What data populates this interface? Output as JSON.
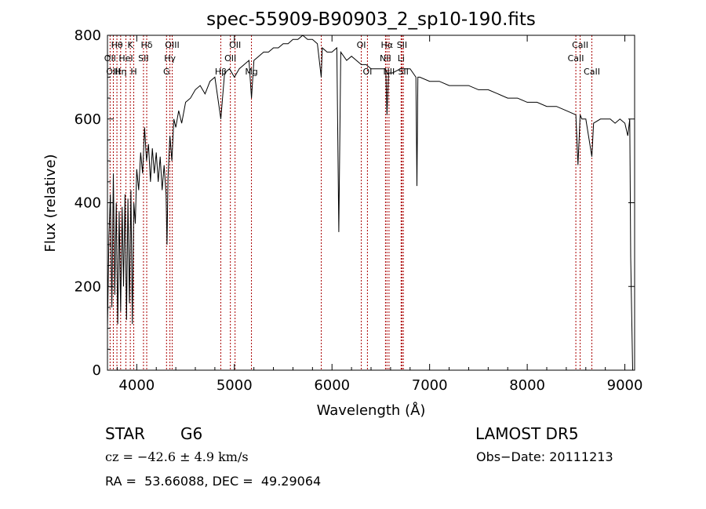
{
  "colors": {
    "spectrum": "#000000",
    "line_marker": "#aa0000",
    "axes": "#000000"
  },
  "chart_data": {
    "type": "line",
    "title": "spec-55909-B90903_2_sp10-190.fits",
    "xlabel": "Wavelength (Å)",
    "ylabel": "Flux (relative)",
    "xlim": [
      3700,
      9100
    ],
    "ylim": [
      0,
      800
    ],
    "x_ticks": [
      4000,
      5000,
      6000,
      7000,
      8000,
      9000
    ],
    "y_ticks": [
      0,
      200,
      400,
      600,
      800
    ],
    "series": [
      {
        "x": [
          3700,
          3715,
          3730,
          3745,
          3760,
          3775,
          3790,
          3805,
          3820,
          3835,
          3850,
          3865,
          3880,
          3895,
          3910,
          3925,
          3940,
          3955,
          3970,
          3985,
          4000,
          4020,
          4040,
          4060,
          4080,
          4100,
          4120,
          4140,
          4160,
          4180,
          4200,
          4220,
          4240,
          4260,
          4280,
          4300,
          4310,
          4320,
          4340,
          4360,
          4380,
          4400,
          4430,
          4460,
          4500,
          4550,
          4600,
          4650,
          4700,
          4750,
          4800,
          4861,
          4900,
          4950,
          5000,
          5050,
          5100,
          5150,
          5175,
          5200,
          5250,
          5300,
          5350,
          5400,
          5450,
          5500,
          5550,
          5600,
          5650,
          5700,
          5750,
          5800,
          5850,
          5890,
          5900,
          5950,
          6000,
          6050,
          6070,
          6090,
          6150,
          6200,
          6250,
          6300,
          6350,
          6400,
          6450,
          6500,
          6550,
          6563,
          6580,
          6620,
          6700,
          6800,
          6860,
          6870,
          6880,
          6900,
          7000,
          7100,
          7200,
          7300,
          7400,
          7500,
          7600,
          7700,
          7800,
          7900,
          8000,
          8100,
          8200,
          8300,
          8400,
          8498,
          8520,
          8542,
          8560,
          8600,
          8662,
          8680,
          8750,
          8800,
          8850,
          8900,
          8950,
          9000,
          9030,
          9050,
          9060,
          9080
        ],
        "y": [
          100,
          320,
          420,
          150,
          470,
          180,
          400,
          110,
          380,
          140,
          390,
          200,
          420,
          120,
          410,
          160,
          430,
          110,
          400,
          350,
          480,
          430,
          520,
          470,
          580,
          500,
          540,
          450,
          530,
          470,
          520,
          450,
          510,
          430,
          490,
          420,
          300,
          460,
          560,
          500,
          600,
          580,
          620,
          590,
          640,
          650,
          670,
          680,
          660,
          690,
          700,
          600,
          710,
          720,
          700,
          720,
          730,
          740,
          650,
          740,
          750,
          760,
          760,
          770,
          770,
          780,
          780,
          790,
          790,
          800,
          790,
          790,
          780,
          700,
          770,
          760,
          760,
          770,
          330,
          760,
          740,
          750,
          740,
          730,
          730,
          720,
          720,
          720,
          720,
          610,
          710,
          710,
          720,
          720,
          700,
          440,
          700,
          700,
          690,
          690,
          680,
          680,
          680,
          670,
          670,
          660,
          650,
          650,
          640,
          640,
          630,
          630,
          620,
          610,
          490,
          610,
          600,
          600,
          510,
          590,
          600,
          600,
          600,
          590,
          600,
          590,
          560,
          600,
          270,
          0
        ]
      }
    ],
    "line_labels": [
      {
        "text": "Hθ",
        "wl": 3797,
        "row": 1
      },
      {
        "text": "K",
        "wl": 3934,
        "row": 1
      },
      {
        "text": "Hδ",
        "wl": 4102,
        "row": 1
      },
      {
        "text": "OIII",
        "wl": 4363,
        "row": 1
      },
      {
        "text": "OII",
        "wl": 3727,
        "row": 2
      },
      {
        "text": "HeI",
        "wl": 3889,
        "row": 2
      },
      {
        "text": "SII",
        "wl": 4069,
        "row": 2
      },
      {
        "text": "Hγ",
        "wl": 4340,
        "row": 2
      },
      {
        "text": "OIII",
        "wl": 3760,
        "row": 3
      },
      {
        "text": "Hη",
        "wl": 3835,
        "row": 3
      },
      {
        "text": "H",
        "wl": 3969,
        "row": 3
      },
      {
        "text": "G",
        "wl": 4305,
        "row": 3
      },
      {
        "text": "OII",
        "wl": 5007,
        "row": 1
      },
      {
        "text": "OII",
        "wl": 4959,
        "row": 2
      },
      {
        "text": "Hβ",
        "wl": 4861,
        "row": 3
      },
      {
        "text": "Mg",
        "wl": 5175,
        "row": 3
      },
      {
        "text": "OI",
        "wl": 6300,
        "row": 1
      },
      {
        "text": "OI",
        "wl": 6363,
        "row": 3
      },
      {
        "text": "Hα",
        "wl": 6563,
        "row": 1
      },
      {
        "text": "SII",
        "wl": 6717,
        "row": 1
      },
      {
        "text": "NII",
        "wl": 6548,
        "row": 2
      },
      {
        "text": "Li",
        "wl": 6708,
        "row": 2
      },
      {
        "text": "NII",
        "wl": 6584,
        "row": 3
      },
      {
        "text": "SII",
        "wl": 6731,
        "row": 3
      },
      {
        "text": "CaII",
        "wl": 8542,
        "row": 1
      },
      {
        "text": "CaII",
        "wl": 8498,
        "row": 2
      },
      {
        "text": "CaII",
        "wl": 8662,
        "row": 3
      }
    ],
    "marker_lines": [
      3727,
      3760,
      3797,
      3835,
      3889,
      3934,
      3969,
      4069,
      4102,
      4305,
      4340,
      4363,
      4861,
      4959,
      5007,
      5175,
      5890,
      6300,
      6363,
      6548,
      6563,
      6584,
      6708,
      6717,
      6731,
      8498,
      8542,
      8662
    ]
  },
  "info": {
    "object_class": "STAR",
    "subclass": "G6",
    "survey": "LAMOST DR5",
    "cz": "cz = −42.6 ± 4.9 km/s",
    "obs_date": "Obs−Date: 20111213",
    "coords": "RA =  53.66088, DEC =  49.29064"
  }
}
